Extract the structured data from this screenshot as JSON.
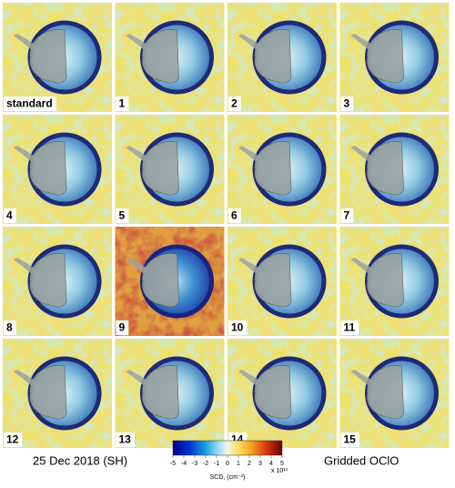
{
  "panels": [
    "standard",
    "1",
    "2",
    "3",
    "4",
    "5",
    "6",
    "7",
    "8",
    "9",
    "10",
    "11",
    "12",
    "13",
    "14",
    "15"
  ],
  "footer": {
    "date": "25 Dec 2018 (SH)",
    "product": "Gridded OClO"
  },
  "colorbar": {
    "ticks": [
      -5,
      -4,
      -3,
      -2,
      -1,
      0,
      1,
      2,
      3,
      4,
      5
    ],
    "label": "SCD, (cm⁻²)",
    "multiplier": "x 10¹³"
  }
}
